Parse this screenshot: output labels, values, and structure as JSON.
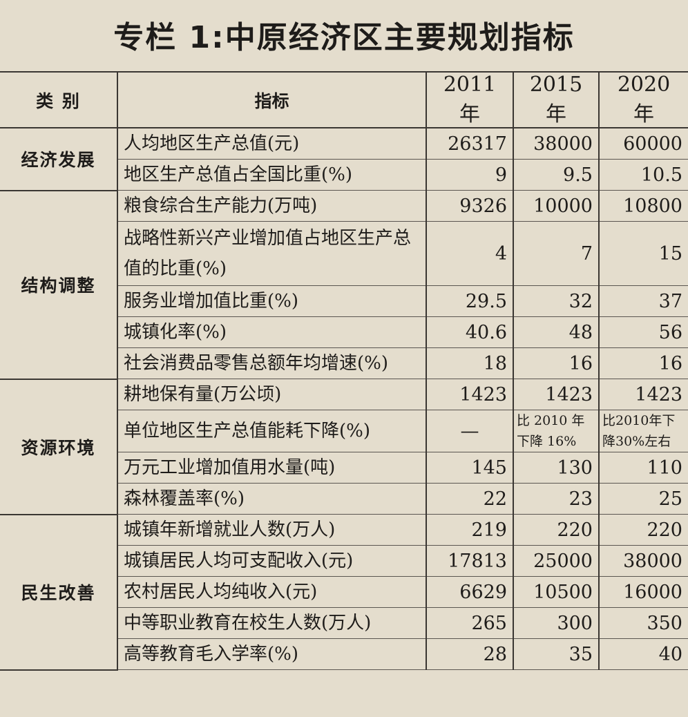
{
  "title": "专栏 1:中原经济区主要规划指标",
  "headers": [
    "类 别",
    "指标",
    "2011 年",
    "2015 年",
    "2020 年"
  ],
  "groups": [
    {
      "category": "经济发展",
      "rows": [
        {
          "indicator": "人均地区生产总值(元)",
          "v2011": "26317",
          "v2015": "38000",
          "v2020": "60000"
        },
        {
          "indicator": "地区生产总值占全国比重(%)",
          "v2011": "9",
          "v2015": "9.5",
          "v2020": "10.5"
        }
      ]
    },
    {
      "category": "结构调整",
      "rows": [
        {
          "indicator": "粮食综合生产能力(万吨)",
          "v2011": "9326",
          "v2015": "10000",
          "v2020": "10800"
        },
        {
          "indicator": "战略性新兴产业增加值占地区生产总值的比重(%)",
          "v2011": "4",
          "v2015": "7",
          "v2020": "15"
        },
        {
          "indicator": "服务业增加值比重(%)",
          "v2011": "29.5",
          "v2015": "32",
          "v2020": "37"
        },
        {
          "indicator": "城镇化率(%)",
          "v2011": "40.6",
          "v2015": "48",
          "v2020": "56"
        },
        {
          "indicator": "社会消费品零售总额年均增速(%)",
          "v2011": "18",
          "v2015": "16",
          "v2020": "16"
        }
      ]
    },
    {
      "category": "资源环境",
      "rows": [
        {
          "indicator": "耕地保有量(万公顷)",
          "v2011": "1423",
          "v2015": "1423",
          "v2020": "1423"
        },
        {
          "indicator": "单位地区生产总值能耗下降(%)",
          "v2011": "—",
          "v2015": "比 2010 年下降 16%",
          "v2020": "比2010年下降30%左右"
        },
        {
          "indicator": "万元工业增加值用水量(吨)",
          "v2011": "145",
          "v2015": "130",
          "v2020": "110"
        },
        {
          "indicator": "森林覆盖率(%)",
          "v2011": "22",
          "v2015": "23",
          "v2020": "25"
        }
      ]
    },
    {
      "category": "民生改善",
      "rows": [
        {
          "indicator": "城镇年新增就业人数(万人)",
          "v2011": "219",
          "v2015": "220",
          "v2020": "220"
        },
        {
          "indicator": "城镇居民人均可支配收入(元)",
          "v2011": "17813",
          "v2015": "25000",
          "v2020": "38000"
        },
        {
          "indicator": "农村居民人均纯收入(元)",
          "v2011": "6629",
          "v2015": "10500",
          "v2020": "16000"
        },
        {
          "indicator": "中等职业教育在校生人数(万人)",
          "v2011": "265",
          "v2015": "300",
          "v2020": "350"
        },
        {
          "indicator": "高等教育毛入学率(%)",
          "v2011": "28",
          "v2015": "35",
          "v2020": "40"
        }
      ]
    }
  ]
}
